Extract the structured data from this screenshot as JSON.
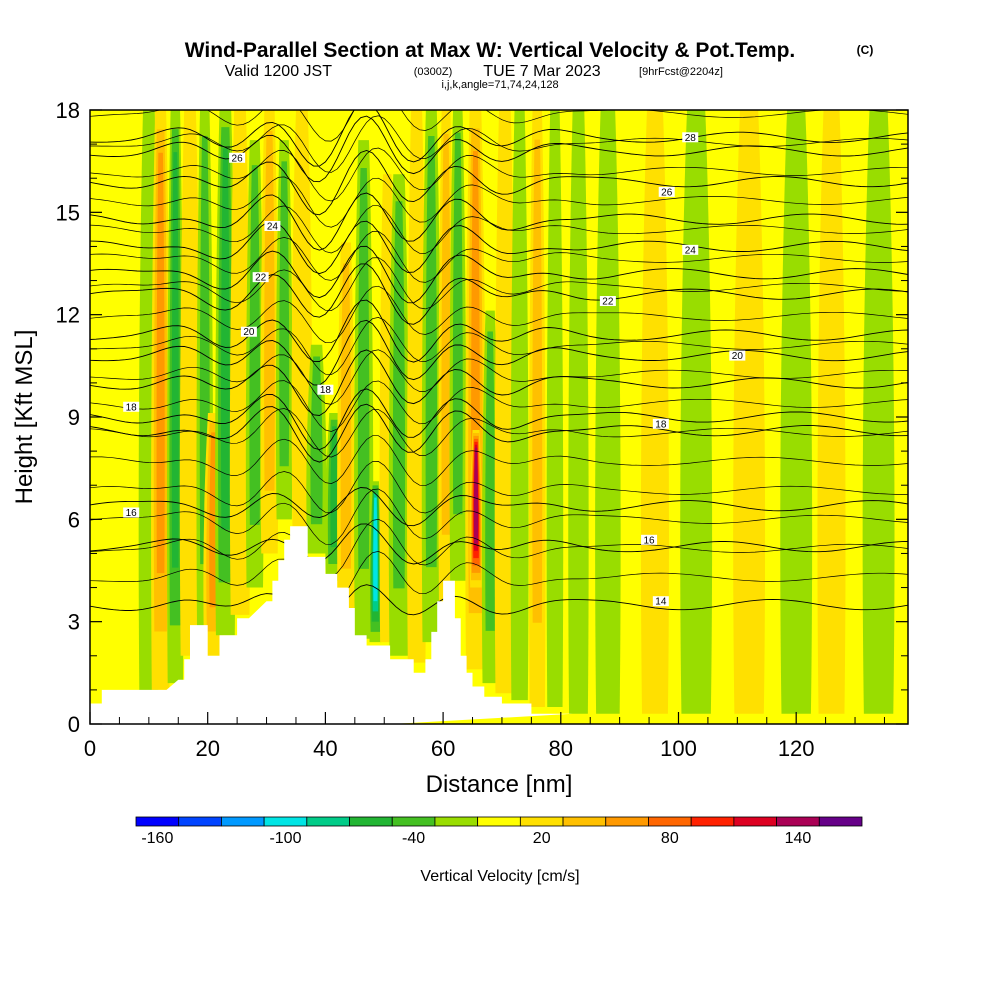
{
  "title": {
    "main": "Wind-Parallel Section at Max W: Vertical Velocity & Pot.Temp.",
    "copyright": "(C)",
    "valid_prefix": "Valid 1200 JST",
    "valid_utc": "(0300Z)",
    "valid_date": "TUE 7 Mar 2023",
    "forecast": "[9hrFcst@2204z]",
    "section_params": "i,j,k,angle=71,74,24,128"
  },
  "chart_data": {
    "type": "heatmap",
    "xlabel": "Distance [nm]",
    "ylabel": "Height [Kft MSL]",
    "xlim": [
      0,
      139
    ],
    "ylim": [
      0,
      18
    ],
    "x_ticks": [
      "0",
      "20",
      "40",
      "60",
      "80",
      "100",
      "120"
    ],
    "y_ticks": [
      "0",
      "3",
      "6",
      "9",
      "12",
      "15",
      "18"
    ],
    "terrain": {
      "x": [
        0,
        2,
        2,
        13,
        15,
        16,
        16,
        17,
        17,
        20,
        20,
        22,
        22,
        25,
        25,
        27,
        30,
        31,
        31,
        32,
        32,
        33,
        33,
        34,
        34,
        37,
        37,
        40,
        40,
        42,
        42,
        44,
        44,
        45,
        45,
        47,
        47,
        51,
        51,
        55,
        55,
        57,
        57,
        58,
        58,
        59,
        59,
        60,
        60,
        61,
        61,
        62,
        62,
        63,
        63,
        64,
        64,
        65,
        65,
        67,
        67,
        70,
        70,
        75,
        75,
        80,
        80,
        82,
        82,
        139
      ],
      "kft": [
        0.6,
        0.6,
        1.0,
        1.0,
        1.3,
        1.3,
        1.9,
        1.9,
        2.9,
        2.9,
        2.0,
        2.0,
        2.6,
        2.6,
        3.1,
        3.1,
        3.6,
        3.6,
        4.2,
        4.2,
        4.8,
        4.8,
        5.4,
        5.4,
        5.8,
        5.8,
        4.9,
        4.9,
        4.4,
        4.4,
        4.0,
        4.0,
        3.4,
        3.4,
        2.6,
        2.6,
        2.3,
        2.3,
        1.9,
        1.9,
        1.5,
        1.5,
        1.9,
        1.9,
        2.7,
        2.7,
        3.6,
        3.6,
        4.2,
        4.2,
        4.2,
        4.2,
        3.1,
        3.1,
        2.0,
        2.0,
        1.5,
        1.5,
        1.1,
        1.1,
        0.8,
        0.8,
        0.6,
        0.6,
        0.3,
        0.3,
        0.3,
        0.3,
        0.3
      ]
    },
    "velocity_plumes": [
      {
        "x": 10,
        "top": 18,
        "bottom": 0.6,
        "w": 1.6,
        "v": -18
      },
      {
        "x": 12,
        "top": 18,
        "bottom": 1.0,
        "w": 1.5,
        "v": 60
      },
      {
        "x": 14.5,
        "top": 18,
        "bottom": 1.2,
        "w": 1.3,
        "v": -55
      },
      {
        "x": 17,
        "top": 18,
        "bottom": 2.0,
        "w": 1.6,
        "v": 18
      },
      {
        "x": 19.5,
        "top": 18,
        "bottom": 2.5,
        "w": 1.3,
        "v": -45
      },
      {
        "x": 21,
        "top": 9,
        "bottom": 2.0,
        "w": 1.6,
        "v": 55
      },
      {
        "x": 23,
        "top": 18,
        "bottom": 2.6,
        "w": 1.6,
        "v": -52
      },
      {
        "x": 25.5,
        "top": 18,
        "bottom": 3.2,
        "w": 1.6,
        "v": 18
      },
      {
        "x": 28,
        "top": 17,
        "bottom": 4.0,
        "w": 1.4,
        "v": -35
      },
      {
        "x": 30.5,
        "top": 18,
        "bottom": 5.0,
        "w": 1.4,
        "v": 45
      },
      {
        "x": 33,
        "top": 17,
        "bottom": 6.0,
        "w": 1.3,
        "v": -45
      },
      {
        "x": 36,
        "top": 18,
        "bottom": 5.8,
        "w": 1.6,
        "v": 18
      },
      {
        "x": 38.5,
        "top": 11,
        "bottom": 5.0,
        "w": 1.6,
        "v": -42
      },
      {
        "x": 41.5,
        "top": 9,
        "bottom": 4.2,
        "w": 1.4,
        "v": -70
      },
      {
        "x": 43.5,
        "top": 14,
        "bottom": 3.0,
        "w": 1.4,
        "v": 48
      },
      {
        "x": 46.5,
        "top": 17,
        "bottom": 2.5,
        "w": 1.5,
        "v": -40
      },
      {
        "x": 48.5,
        "top": 7,
        "bottom": 2.4,
        "w": 1.0,
        "v": -105
      },
      {
        "x": 50.5,
        "top": 16,
        "bottom": 2.4,
        "w": 1.2,
        "v": 30
      },
      {
        "x": 52.5,
        "top": 16,
        "bottom": 2.0,
        "w": 1.6,
        "v": -48
      },
      {
        "x": 55.5,
        "top": 18,
        "bottom": 1.8,
        "w": 1.5,
        "v": 18
      },
      {
        "x": 58,
        "top": 18,
        "bottom": 2.4,
        "w": 1.5,
        "v": -50
      },
      {
        "x": 60.5,
        "top": 18,
        "bottom": 3.5,
        "w": 1.2,
        "v": 45
      },
      {
        "x": 62.5,
        "top": 18,
        "bottom": 4.2,
        "w": 1.3,
        "v": -48
      },
      {
        "x": 65.5,
        "top": 18,
        "bottom": 1.6,
        "w": 1.6,
        "v": 55
      },
      {
        "x": 65.6,
        "top": 8.5,
        "bottom": 4.0,
        "w": 1.0,
        "v": 150
      },
      {
        "x": 68,
        "top": 12,
        "bottom": 1.2,
        "w": 1.3,
        "v": -48
      },
      {
        "x": 70.5,
        "top": 18,
        "bottom": 0.9,
        "w": 1.6,
        "v": 18
      },
      {
        "x": 73,
        "top": 18,
        "bottom": 0.7,
        "w": 1.4,
        "v": -22
      },
      {
        "x": 76,
        "top": 18,
        "bottom": 0.5,
        "w": 1.3,
        "v": 35
      },
      {
        "x": 79,
        "top": 18,
        "bottom": 0.5,
        "w": 1.3,
        "v": -22
      },
      {
        "x": 83,
        "top": 18,
        "bottom": 0.3,
        "w": 1.6,
        "v": -25
      },
      {
        "x": 88,
        "top": 18,
        "bottom": 0.3,
        "w": 2.0,
        "v": -20
      },
      {
        "x": 96,
        "top": 18,
        "bottom": 0.3,
        "w": 2.2,
        "v": 25
      },
      {
        "x": 103,
        "top": 18,
        "bottom": 0.3,
        "w": 2.5,
        "v": -18
      },
      {
        "x": 112,
        "top": 18,
        "bottom": 0.3,
        "w": 2.5,
        "v": 22
      },
      {
        "x": 120,
        "top": 18,
        "bottom": 0.3,
        "w": 2.5,
        "v": -18
      },
      {
        "x": 126,
        "top": 18,
        "bottom": 0.3,
        "w": 2.2,
        "v": 22
      },
      {
        "x": 134,
        "top": 18,
        "bottom": 0.3,
        "w": 2.5,
        "v": -18
      }
    ],
    "pot_temp_contours": [
      {
        "label": "14",
        "base": 3.5,
        "label_x": 97,
        "label_y": 3.6
      },
      {
        "label": "16",
        "base": 5.2,
        "label_x": 95,
        "label_y": 5.4
      },
      {
        "label": "16",
        "base": 6.4,
        "label_x": 7,
        "label_y": 6.2
      },
      {
        "label": "18",
        "base": 9.0,
        "label_x": 7,
        "label_y": 9.3
      },
      {
        "label": "18",
        "base": 8.6,
        "label_x": 97,
        "label_y": 8.8
      },
      {
        "label": "18",
        "base": 10.0,
        "label_x": 40,
        "label_y": 9.8
      },
      {
        "label": "20",
        "base": 11.4,
        "label_x": 27,
        "label_y": 11.5
      },
      {
        "label": "20",
        "base": 10.8,
        "label_x": 110,
        "label_y": 10.8
      },
      {
        "label": "22",
        "base": 12.6,
        "label_x": 88,
        "label_y": 12.4
      },
      {
        "label": "22",
        "base": 13.2,
        "label_x": 29,
        "label_y": 13.1
      },
      {
        "label": "24",
        "base": 14.0,
        "label_x": 102,
        "label_y": 13.9
      },
      {
        "label": "24",
        "base": 14.8,
        "label_x": 31,
        "label_y": 14.6
      },
      {
        "label": "26",
        "base": 15.9,
        "label_x": 98,
        "label_y": 15.6
      },
      {
        "label": "26",
        "base": 16.8,
        "label_x": 25,
        "label_y": 16.6
      },
      {
        "label": "28",
        "base": 17.2,
        "label_x": 102,
        "label_y": 17.2
      }
    ],
    "colorbar": {
      "title": "Vertical Velocity [cm/s]",
      "levels": [
        -170,
        -150,
        -130,
        -110,
        -90,
        -70,
        -50,
        -30,
        -10,
        10,
        30,
        50,
        70,
        90,
        110,
        130,
        150,
        170
      ],
      "colors": [
        "#0000ff",
        "#0044ff",
        "#0099ff",
        "#00e5e5",
        "#00cc88",
        "#22b533",
        "#44c022",
        "#99dd00",
        "#ffff00",
        "#ffe000",
        "#ffc000",
        "#ff9900",
        "#ff6600",
        "#ff2200",
        "#dd0022",
        "#aa0055",
        "#660088"
      ],
      "tick_labels": [
        "-160",
        "-100",
        "-40",
        "20",
        "80",
        "140"
      ],
      "tick_values": [
        -160,
        -100,
        -40,
        20,
        80,
        140
      ]
    }
  }
}
